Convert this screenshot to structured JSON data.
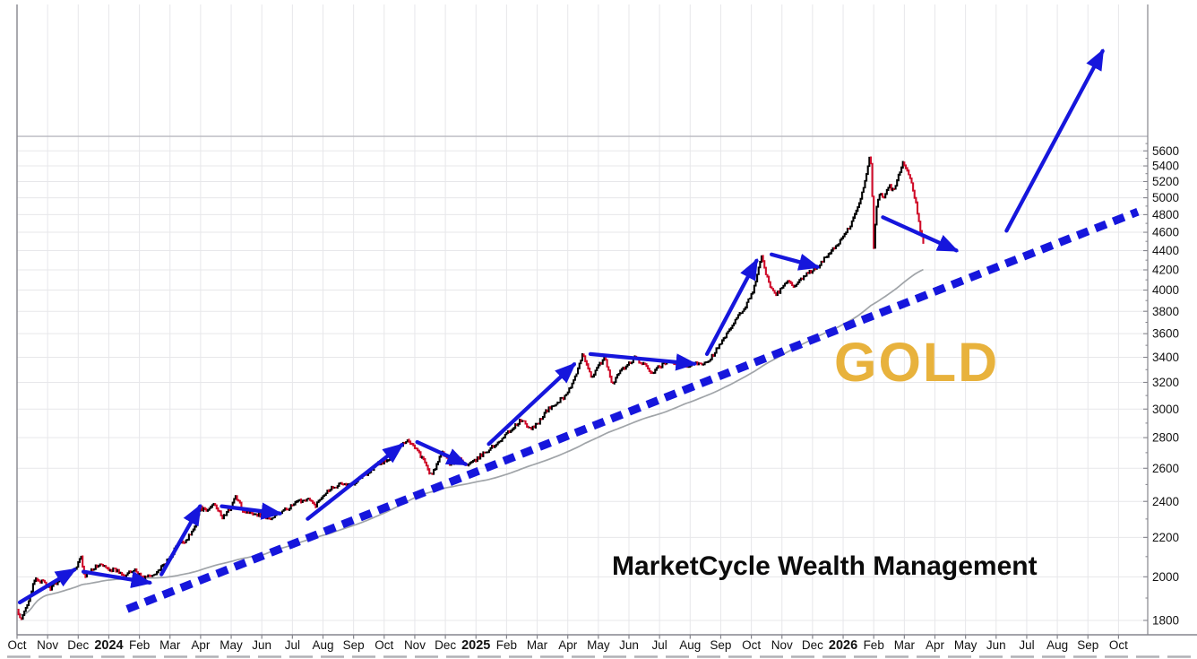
{
  "chart_data": {
    "type": "line",
    "subtype": "daily-hlc-bar-stockchart",
    "instrument": "GOLD",
    "watermark": "MarketCycle Wealth Management",
    "x_axis": {
      "start": "Oct 2023",
      "labels": [
        "Oct",
        "Nov",
        "Dec",
        "2024",
        "Feb",
        "Mar",
        "Apr",
        "May",
        "Jun",
        "Jul",
        "Aug",
        "Sep",
        "Oct",
        "Nov",
        "Dec",
        "2025",
        "Feb",
        "Mar",
        "Apr",
        "May",
        "Jun",
        "Jul",
        "Aug",
        "Sep",
        "Oct",
        "Nov",
        "Dec",
        "2026",
        "Feb",
        "Mar",
        "Apr",
        "May",
        "Jun",
        "Jul",
        "Aug",
        "Sep",
        "Oct"
      ],
      "bold_label_indices": [
        3,
        15,
        27
      ],
      "grid": true
    },
    "y_axis": {
      "side": "right",
      "scale": "log",
      "tick_min": 1800,
      "tick_max": 5600,
      "tick_step": 200,
      "ticks": [
        1800,
        2000,
        2200,
        2400,
        2600,
        2800,
        3000,
        3200,
        3400,
        3600,
        3800,
        4000,
        4200,
        4400,
        4600,
        4800,
        5000,
        5200,
        5400,
        5600
      ],
      "extra_gridline_value": 5800,
      "grid": true
    },
    "price_series": {
      "name": "gold-daily-price",
      "units": "USD per ounce",
      "anchors_monthindex_price": [
        [
          0.0,
          1845
        ],
        [
          0.12,
          1795
        ],
        [
          0.35,
          1880
        ],
        [
          0.6,
          1990
        ],
        [
          0.85,
          1975
        ],
        [
          1.1,
          1945
        ],
        [
          1.4,
          1990
        ],
        [
          1.7,
          2020
        ],
        [
          1.95,
          2040
        ],
        [
          2.08,
          2110
        ],
        [
          2.2,
          2000
        ],
        [
          2.45,
          2040
        ],
        [
          2.7,
          2060
        ],
        [
          2.95,
          2040
        ],
        [
          3.25,
          2030
        ],
        [
          3.55,
          2010
        ],
        [
          3.85,
          2035
        ],
        [
          4.1,
          1995
        ],
        [
          4.4,
          2005
        ],
        [
          4.7,
          2040
        ],
        [
          5.0,
          2095
        ],
        [
          5.25,
          2165
        ],
        [
          5.5,
          2180
        ],
        [
          5.75,
          2235
        ],
        [
          5.98,
          2365
        ],
        [
          6.2,
          2340
        ],
        [
          6.45,
          2395
        ],
        [
          6.7,
          2305
        ],
        [
          6.95,
          2355
        ],
        [
          7.15,
          2430
        ],
        [
          7.4,
          2345
        ],
        [
          7.7,
          2335
        ],
        [
          8.0,
          2320
        ],
        [
          8.3,
          2300
        ],
        [
          8.6,
          2335
        ],
        [
          8.9,
          2365
        ],
        [
          9.2,
          2400
        ],
        [
          9.5,
          2415
        ],
        [
          9.75,
          2375
        ],
        [
          10.0,
          2440
        ],
        [
          10.3,
          2485
        ],
        [
          10.6,
          2505
        ],
        [
          10.9,
          2495
        ],
        [
          11.2,
          2545
        ],
        [
          11.5,
          2575
        ],
        [
          11.8,
          2630
        ],
        [
          12.1,
          2645
        ],
        [
          12.4,
          2725
        ],
        [
          12.75,
          2785
        ],
        [
          13.0,
          2740
        ],
        [
          13.3,
          2645
        ],
        [
          13.55,
          2550
        ],
        [
          13.9,
          2705
        ],
        [
          14.15,
          2625
        ],
        [
          14.45,
          2665
        ],
        [
          14.7,
          2615
        ],
        [
          14.95,
          2645
        ],
        [
          15.3,
          2705
        ],
        [
          15.6,
          2745
        ],
        [
          15.9,
          2805
        ],
        [
          16.2,
          2865
        ],
        [
          16.5,
          2925
        ],
        [
          16.75,
          2855
        ],
        [
          17.0,
          2895
        ],
        [
          17.3,
          2985
        ],
        [
          17.6,
          3035
        ],
        [
          17.9,
          3095
        ],
        [
          18.1,
          3165
        ],
        [
          18.3,
          3270
        ],
        [
          18.5,
          3435
        ],
        [
          18.65,
          3325
        ],
        [
          18.8,
          3235
        ],
        [
          19.0,
          3325
        ],
        [
          19.2,
          3405
        ],
        [
          19.45,
          3185
        ],
        [
          19.7,
          3285
        ],
        [
          19.95,
          3335
        ],
        [
          20.2,
          3395
        ],
        [
          20.5,
          3335
        ],
        [
          20.75,
          3275
        ],
        [
          21.0,
          3325
        ],
        [
          21.3,
          3365
        ],
        [
          21.6,
          3345
        ],
        [
          21.9,
          3315
        ],
        [
          22.15,
          3360
        ],
        [
          22.4,
          3350
        ],
        [
          22.65,
          3385
        ],
        [
          22.9,
          3475
        ],
        [
          23.1,
          3555
        ],
        [
          23.35,
          3655
        ],
        [
          23.6,
          3765
        ],
        [
          23.85,
          3865
        ],
        [
          24.05,
          3995
        ],
        [
          24.2,
          4160
        ],
        [
          24.35,
          4355
        ],
        [
          24.5,
          4135
        ],
        [
          24.65,
          4005
        ],
        [
          24.8,
          3955
        ],
        [
          25.0,
          4015
        ],
        [
          25.2,
          4095
        ],
        [
          25.4,
          4015
        ],
        [
          25.65,
          4115
        ],
        [
          25.9,
          4175
        ],
        [
          26.1,
          4215
        ],
        [
          26.35,
          4295
        ],
        [
          26.6,
          4395
        ],
        [
          26.85,
          4485
        ],
        [
          27.05,
          4565
        ],
        [
          27.3,
          4725
        ],
        [
          27.55,
          4955
        ],
        [
          27.75,
          5255
        ],
        [
          27.88,
          5580
        ],
        [
          27.93,
          5300
        ],
        [
          28.0,
          4430
        ],
        [
          28.08,
          4880
        ],
        [
          28.2,
          5070
        ],
        [
          28.35,
          5005
        ],
        [
          28.5,
          5145
        ],
        [
          28.65,
          5085
        ],
        [
          28.8,
          5265
        ],
        [
          28.96,
          5440
        ],
        [
          29.1,
          5330
        ],
        [
          29.25,
          5170
        ],
        [
          29.4,
          4890
        ],
        [
          29.52,
          4620
        ],
        [
          29.62,
          4475
        ]
      ]
    },
    "moving_average": {
      "name": "long-moving-average",
      "window_trading_days": 170,
      "color": "#a0a4a8"
    },
    "trendline": {
      "name": "rising-support-trendline",
      "style": "dashed",
      "color": "#1616dc",
      "from_monthindex_price": [
        3.6,
        1850
      ],
      "to_monthindex_price": [
        36.63,
        4834
      ]
    },
    "arrows": {
      "name": "cycle-annotation-arrows",
      "color": "#1616dc",
      "segments_monthindex_price": [
        [
          0.09,
          1880,
          1.88,
          2035
        ],
        [
          2.17,
          2025,
          4.34,
          1972
        ],
        [
          4.72,
          2012,
          5.98,
          2372
        ],
        [
          6.69,
          2372,
          8.59,
          2331
        ],
        [
          9.5,
          2301,
          12.58,
          2752
        ],
        [
          13.08,
          2770,
          14.66,
          2626
        ],
        [
          15.42,
          2757,
          18.21,
          3343
        ],
        [
          18.74,
          3427,
          22.14,
          3347
        ],
        [
          22.55,
          3427,
          24.17,
          4294
        ],
        [
          24.66,
          4360,
          26.16,
          4230
        ],
        [
          28.3,
          4770,
          30.7,
          4402
        ],
        [
          32.34,
          4617,
          35.48,
          7128
        ]
      ]
    },
    "colors": {
      "up_bar": "#000000",
      "down_bar": "#cf0a28",
      "annotation_blue": "#1616dc",
      "gold_label": "#e8b23c",
      "grid_light": "#e7e7ea",
      "grid_dark": "#b9b9c0",
      "axis": "#85858d",
      "tick_text": "#111111"
    }
  }
}
